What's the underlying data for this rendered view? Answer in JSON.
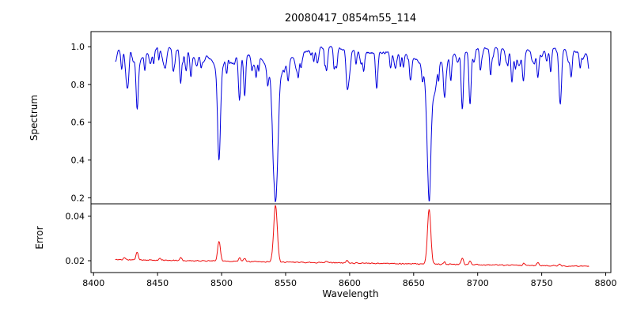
{
  "chart_data": {
    "type": "line",
    "title": "20080417_0854m55_114",
    "xlabel": "Wavelength",
    "xlim": [
      8398,
      8804
    ],
    "x_range": [
      8417,
      8787
    ],
    "x_ticks": [
      {
        "v": 8400,
        "label": "8400"
      },
      {
        "v": 8450,
        "label": "8450"
      },
      {
        "v": 8500,
        "label": "8500"
      },
      {
        "v": 8550,
        "label": "8550"
      },
      {
        "v": 8600,
        "label": "8600"
      },
      {
        "v": 8650,
        "label": "8650"
      },
      {
        "v": 8700,
        "label": "8700"
      },
      {
        "v": 8750,
        "label": "8750"
      },
      {
        "v": 8800,
        "label": "8800"
      }
    ],
    "grid": false,
    "legend": "none",
    "panels": [
      {
        "ylabel": "Spectrum",
        "color": "#0000dd",
        "ylim": [
          0.168,
          1.08
        ],
        "y_ticks": [
          {
            "v": 0.2,
            "label": "0.2"
          },
          {
            "v": 0.4,
            "label": "0.4"
          },
          {
            "v": 0.6,
            "label": "0.6"
          },
          {
            "v": 0.8,
            "label": "0.8"
          },
          {
            "v": 1.0,
            "label": "1.0"
          }
        ],
        "continuum": {
          "base": 0.98,
          "wobble": [
            [
              0.013,
              23.0,
              0.0
            ],
            [
              0.009,
              9.7,
              1.7
            ]
          ],
          "jitter": 0.009,
          "jitter_seed": 7
        },
        "core_lines": [
          [
            8498.0,
            0.46,
            1.1,
            0.1,
            4.0
          ],
          [
            8542.1,
            0.62,
            1.6,
            0.16,
            7.0
          ],
          [
            8662.1,
            0.6,
            1.4,
            0.15,
            6.0
          ]
        ],
        "lines": [
          [
            8422,
            0.1,
            0.7
          ],
          [
            8427,
            0.14,
            0.8
          ],
          [
            8434,
            0.3,
            0.9
          ],
          [
            8440,
            0.11,
            0.7
          ],
          [
            8447,
            0.08,
            0.6
          ],
          [
            8451,
            0.06,
            0.5
          ],
          [
            8462,
            0.09,
            0.7
          ],
          [
            8468,
            0.16,
            0.8
          ],
          [
            8476,
            0.1,
            0.7
          ],
          [
            8484,
            0.07,
            0.6
          ],
          [
            8504,
            0.07,
            0.6
          ],
          [
            8514,
            0.24,
            0.9
          ],
          [
            8518,
            0.22,
            0.8
          ],
          [
            8527,
            0.09,
            0.7
          ],
          [
            8536,
            0.09,
            0.7
          ],
          [
            8552,
            0.08,
            0.7
          ],
          [
            8560,
            0.07,
            0.6
          ],
          [
            8572,
            0.07,
            0.6
          ],
          [
            8582,
            0.12,
            0.8
          ],
          [
            8590,
            0.07,
            0.6
          ],
          [
            8598,
            0.16,
            0.9
          ],
          [
            8605,
            0.07,
            0.6
          ],
          [
            8611,
            0.1,
            0.7
          ],
          [
            8621,
            0.13,
            0.8
          ],
          [
            8632,
            0.08,
            0.7
          ],
          [
            8642,
            0.07,
            0.6
          ],
          [
            8648,
            0.1,
            0.7
          ],
          [
            8674,
            0.17,
            0.8
          ],
          [
            8679,
            0.13,
            0.7
          ],
          [
            8688,
            0.3,
            0.9
          ],
          [
            8694,
            0.23,
            0.8
          ],
          [
            8702,
            0.08,
            0.6
          ],
          [
            8710,
            0.12,
            0.7
          ],
          [
            8717,
            0.1,
            0.7
          ],
          [
            8727,
            0.07,
            0.6
          ],
          [
            8736,
            0.12,
            0.8
          ],
          [
            8747,
            0.15,
            0.8
          ],
          [
            8757,
            0.12,
            0.7
          ],
          [
            8764,
            0.15,
            0.8
          ],
          [
            8773,
            0.1,
            0.7
          ],
          [
            8780,
            0.08,
            0.6
          ]
        ],
        "weak_lines": {
          "count": 90,
          "seed": 20080417,
          "depth": [
            0.015,
            0.085
          ],
          "width": [
            0.4,
            1.3
          ]
        },
        "notable_minima": [
          {
            "x": 8498.0,
            "y": 0.41
          },
          {
            "x": 8542.1,
            "y": 0.2
          },
          {
            "x": 8662.1,
            "y": 0.22
          },
          {
            "x": 8434,
            "y": 0.66
          },
          {
            "x": 8688,
            "y": 0.67
          }
        ]
      },
      {
        "ylabel": "Error",
        "color": "#ee1111",
        "ylim": [
          0.0147,
          0.0455
        ],
        "y_ticks": [
          {
            "v": 0.02,
            "label": "0.02"
          },
          {
            "v": 0.04,
            "label": "0.04"
          }
        ],
        "baseline": [
          0.0205,
          0.0175
        ],
        "jitter": 0.00035,
        "jitter_seed": 11,
        "spikes": [
          [
            8424,
            0.001,
            0.8
          ],
          [
            8434,
            0.0035,
            0.9
          ],
          [
            8452,
            0.0008,
            0.7
          ],
          [
            8468,
            0.0012,
            0.8
          ],
          [
            8498.0,
            0.0088,
            1.1
          ],
          [
            8514,
            0.0016,
            0.8
          ],
          [
            8518,
            0.0014,
            0.8
          ],
          [
            8542.1,
            0.0255,
            1.4
          ],
          [
            8582,
            0.0008,
            0.7
          ],
          [
            8598,
            0.0012,
            0.8
          ],
          [
            8662.1,
            0.0245,
            1.3
          ],
          [
            8674,
            0.001,
            0.7
          ],
          [
            8688,
            0.003,
            0.9
          ],
          [
            8694,
            0.0018,
            0.8
          ],
          [
            8736,
            0.0008,
            0.7
          ],
          [
            8747,
            0.0013,
            0.8
          ],
          [
            8764,
            0.0009,
            0.7
          ]
        ],
        "notable_maxima": [
          {
            "x": 8542.1,
            "y": 0.045
          },
          {
            "x": 8662.1,
            "y": 0.044
          },
          {
            "x": 8498.0,
            "y": 0.029
          }
        ]
      }
    ]
  }
}
